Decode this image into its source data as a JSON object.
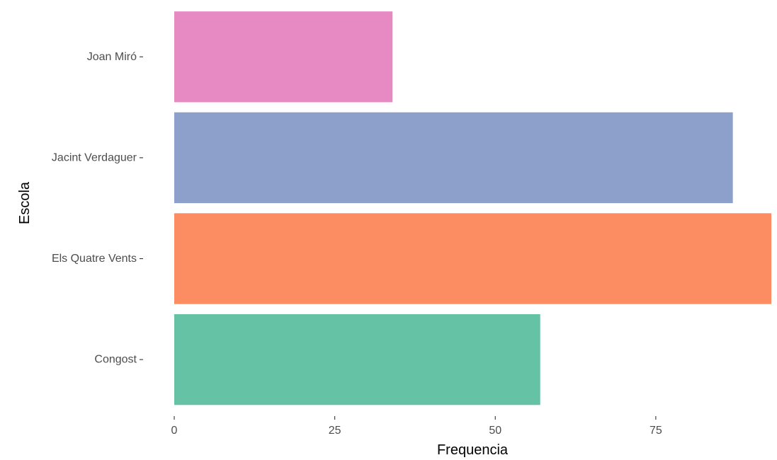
{
  "chart_data": {
    "type": "bar",
    "orientation": "horizontal",
    "categories": [
      "Congost",
      "Els Quatre Vents",
      "Jacint Verdaguer",
      "Joan Miró"
    ],
    "values": [
      57,
      93,
      87,
      34
    ],
    "colors": [
      "#66c2a5",
      "#fc8d62",
      "#8da0cb",
      "#e78ac3"
    ],
    "xlabel": "Frequencia",
    "ylabel": "Escola",
    "xlim": [
      0,
      93
    ],
    "xticks": [
      0,
      25,
      50,
      75
    ],
    "xtick_labels": [
      "0",
      "25",
      "50",
      "75"
    ],
    "grid": false,
    "legend": "none"
  }
}
